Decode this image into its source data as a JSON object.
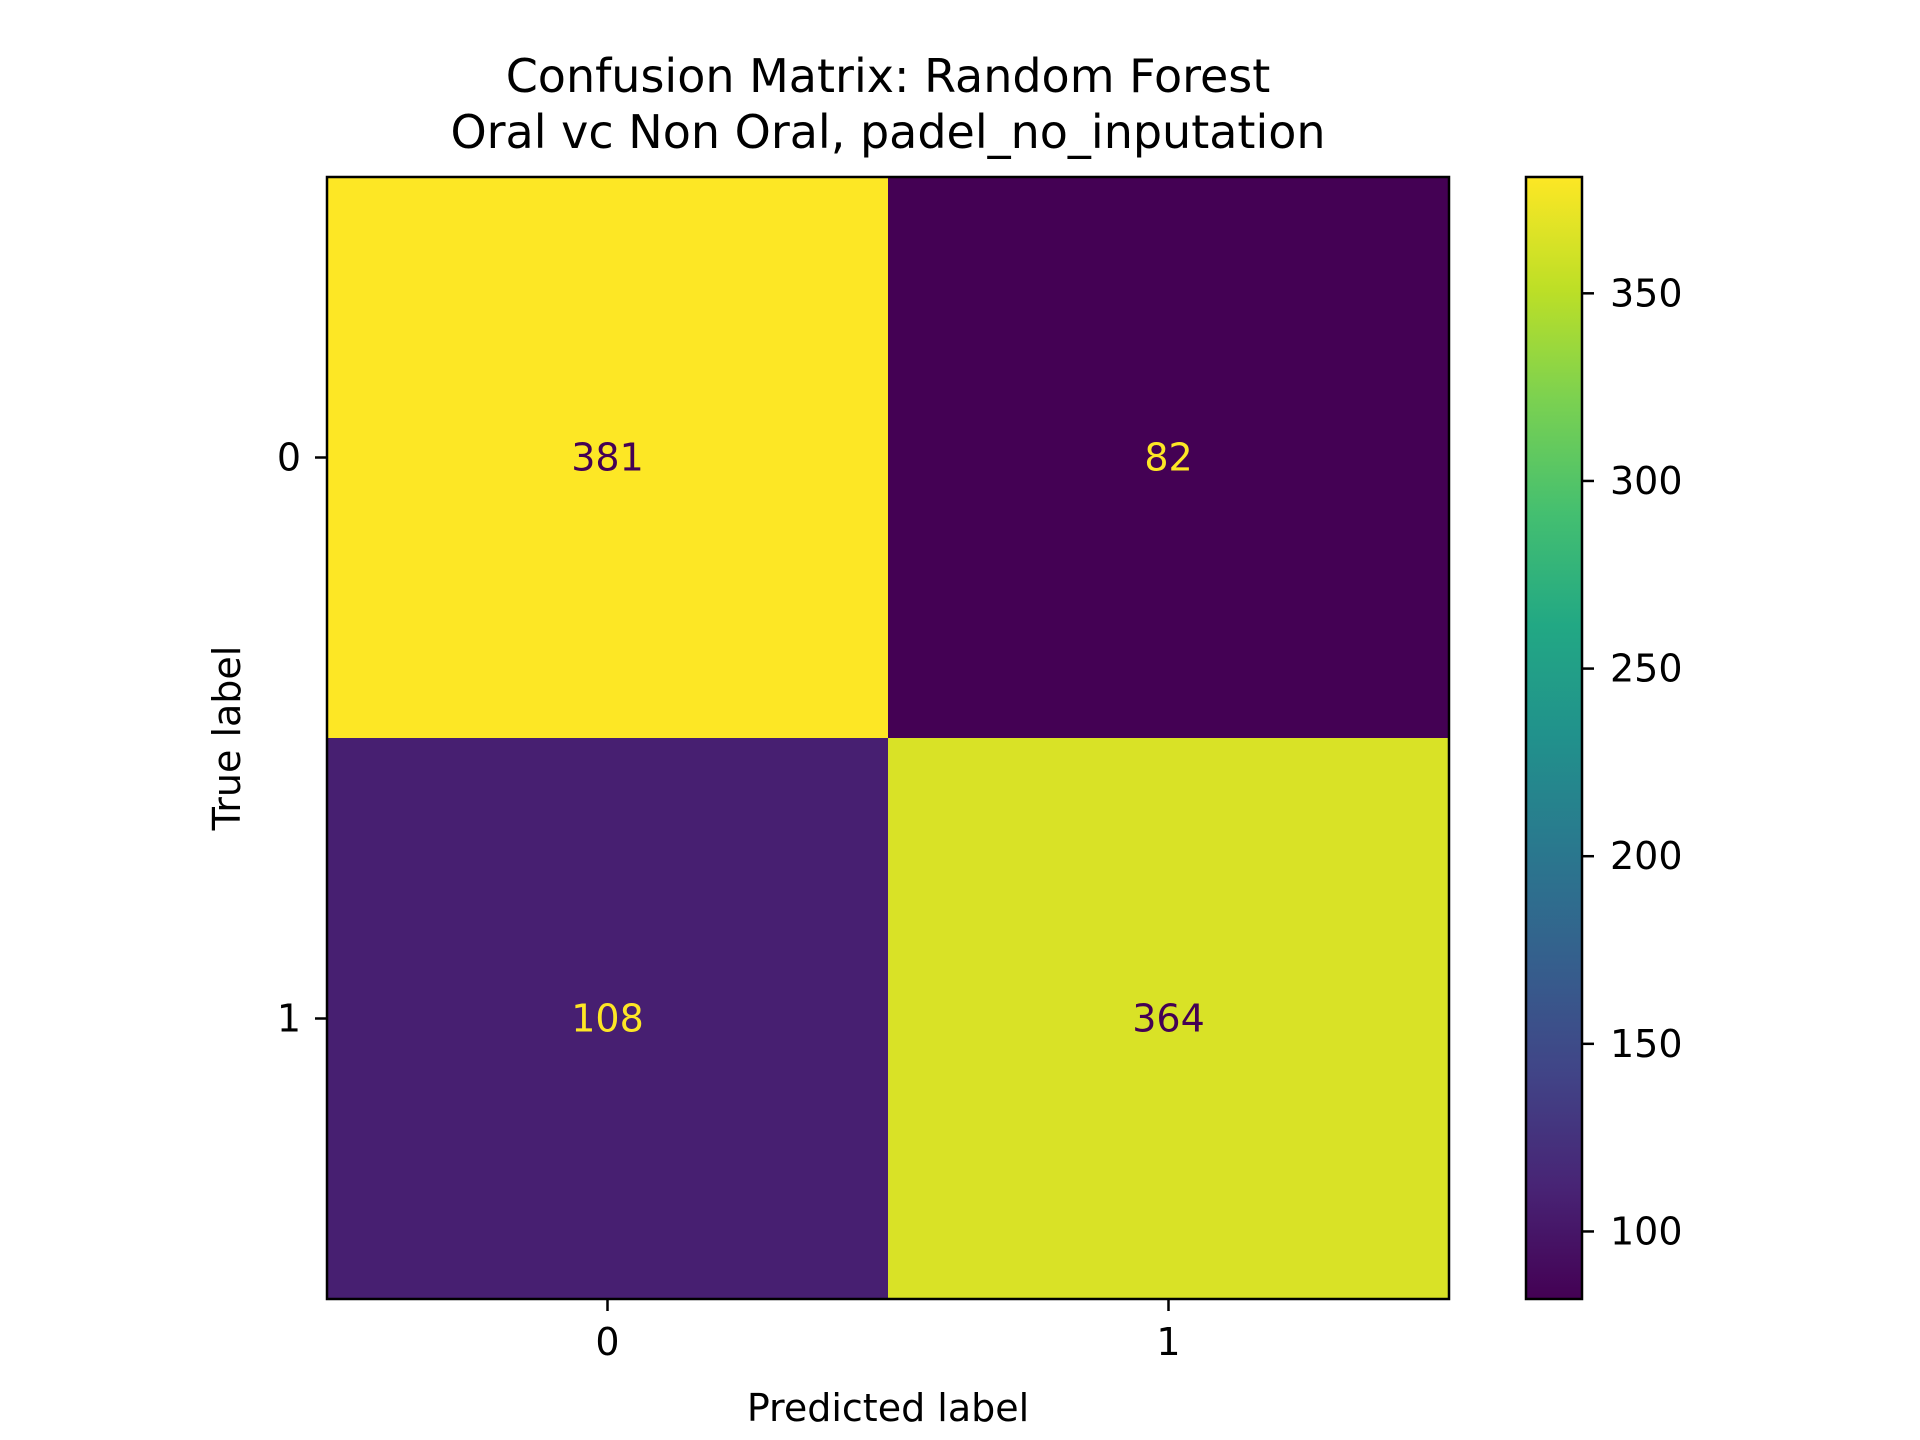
{
  "chart_data": {
    "type": "heatmap",
    "title_lines": [
      "Confusion Matrix: Random Forest",
      "Oral vc Non Oral, padel_no_inputation"
    ],
    "xlabel": "Predicted label",
    "ylabel": "True label",
    "x_categories": [
      "0",
      "1"
    ],
    "y_categories": [
      "0",
      "1"
    ],
    "matrix": [
      [
        381,
        82
      ],
      [
        108,
        364
      ]
    ],
    "colormap": "viridis",
    "colorbar": {
      "range": [
        82,
        381
      ],
      "ticks": [
        100,
        150,
        200,
        250,
        300,
        350
      ]
    },
    "cell_label_colors": {
      "on_light": "#440154",
      "on_dark": "#fde725"
    },
    "grid": false
  }
}
